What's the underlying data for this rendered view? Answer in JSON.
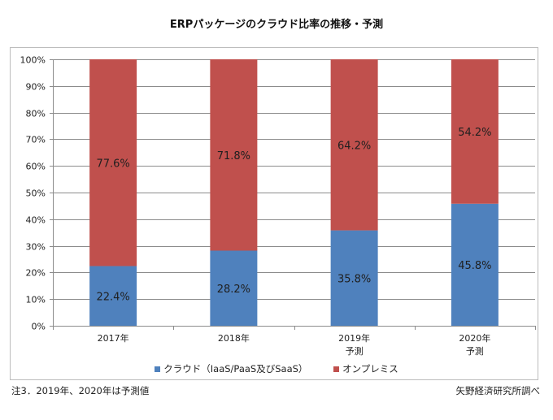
{
  "chart_data": {
    "type": "bar",
    "stacked": true,
    "percent_stacked": true,
    "title": "ERPパッケージのクラウド比率の推移・予測",
    "xlabel": "",
    "ylabel": "",
    "ylim": [
      0,
      100
    ],
    "y_ticks": [
      "0%",
      "10%",
      "20%",
      "30%",
      "40%",
      "50%",
      "60%",
      "70%",
      "80%",
      "90%",
      "100%"
    ],
    "y_tick_values": [
      0,
      10,
      20,
      30,
      40,
      50,
      60,
      70,
      80,
      90,
      100
    ],
    "grid": true,
    "categories": [
      {
        "line1": "2017年",
        "line2": ""
      },
      {
        "line1": "2018年",
        "line2": ""
      },
      {
        "line1": "2019年",
        "line2": "予測"
      },
      {
        "line1": "2020年",
        "line2": "予測"
      }
    ],
    "series": [
      {
        "name": "クラウド（IaaS/PaaS及びSaaS）",
        "color": "#4F81BD",
        "values": [
          22.4,
          28.2,
          35.8,
          45.8
        ],
        "labels": [
          "22.4%",
          "28.2%",
          "35.8%",
          "45.8%"
        ]
      },
      {
        "name": "オンプレミス",
        "color": "#C0504D",
        "values": [
          77.6,
          71.8,
          64.2,
          54.2
        ],
        "labels": [
          "77.6%",
          "71.8%",
          "64.2%",
          "54.2%"
        ]
      }
    ],
    "legend_position": "bottom"
  },
  "footer": {
    "note": "注3．2019年、2020年は予測値",
    "source": "矢野経済研究所調べ"
  }
}
